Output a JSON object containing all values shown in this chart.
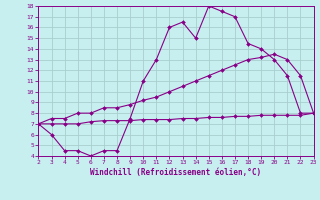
{
  "xlabel": "Windchill (Refroidissement éolien,°C)",
  "bg_color": "#c8efef",
  "grid_color": "#a8cece",
  "line_color": "#880088",
  "x_min": 2,
  "x_max": 23,
  "y_min": 4,
  "y_max": 18,
  "series1_x": [
    2,
    3,
    4,
    5,
    6,
    7,
    8,
    9,
    10,
    11,
    12,
    13,
    14,
    15,
    16,
    17,
    18,
    19,
    20,
    21,
    22,
    23
  ],
  "series1_y": [
    7.0,
    6.0,
    4.5,
    4.5,
    4.0,
    4.5,
    4.5,
    7.5,
    11.0,
    13.0,
    16.0,
    16.5,
    15.0,
    18.0,
    17.5,
    17.0,
    14.5,
    14.0,
    13.0,
    11.5,
    8.0,
    8.0
  ],
  "series2_x": [
    2,
    3,
    4,
    5,
    6,
    7,
    8,
    9,
    10,
    11,
    12,
    13,
    14,
    15,
    16,
    17,
    18,
    19,
    20,
    21,
    22,
    23
  ],
  "series2_y": [
    7.0,
    7.5,
    7.5,
    8.0,
    8.0,
    8.5,
    8.5,
    8.8,
    9.2,
    9.5,
    10.0,
    10.5,
    11.0,
    11.5,
    12.0,
    12.5,
    13.0,
    13.2,
    13.5,
    13.0,
    11.5,
    8.0
  ],
  "series3_x": [
    2,
    3,
    4,
    5,
    6,
    7,
    8,
    9,
    10,
    11,
    12,
    13,
    14,
    15,
    16,
    17,
    18,
    19,
    20,
    21,
    22,
    23
  ],
  "series3_y": [
    7.0,
    7.0,
    7.0,
    7.0,
    7.2,
    7.3,
    7.3,
    7.3,
    7.4,
    7.4,
    7.4,
    7.5,
    7.5,
    7.6,
    7.6,
    7.7,
    7.7,
    7.8,
    7.8,
    7.8,
    7.8,
    8.0
  ],
  "yticks": [
    4,
    5,
    6,
    7,
    8,
    9,
    10,
    11,
    12,
    13,
    14,
    15,
    16,
    17,
    18
  ],
  "xticks": [
    2,
    3,
    4,
    5,
    6,
    7,
    8,
    9,
    10,
    11,
    12,
    13,
    14,
    15,
    16,
    17,
    18,
    19,
    20,
    21,
    22,
    23
  ]
}
